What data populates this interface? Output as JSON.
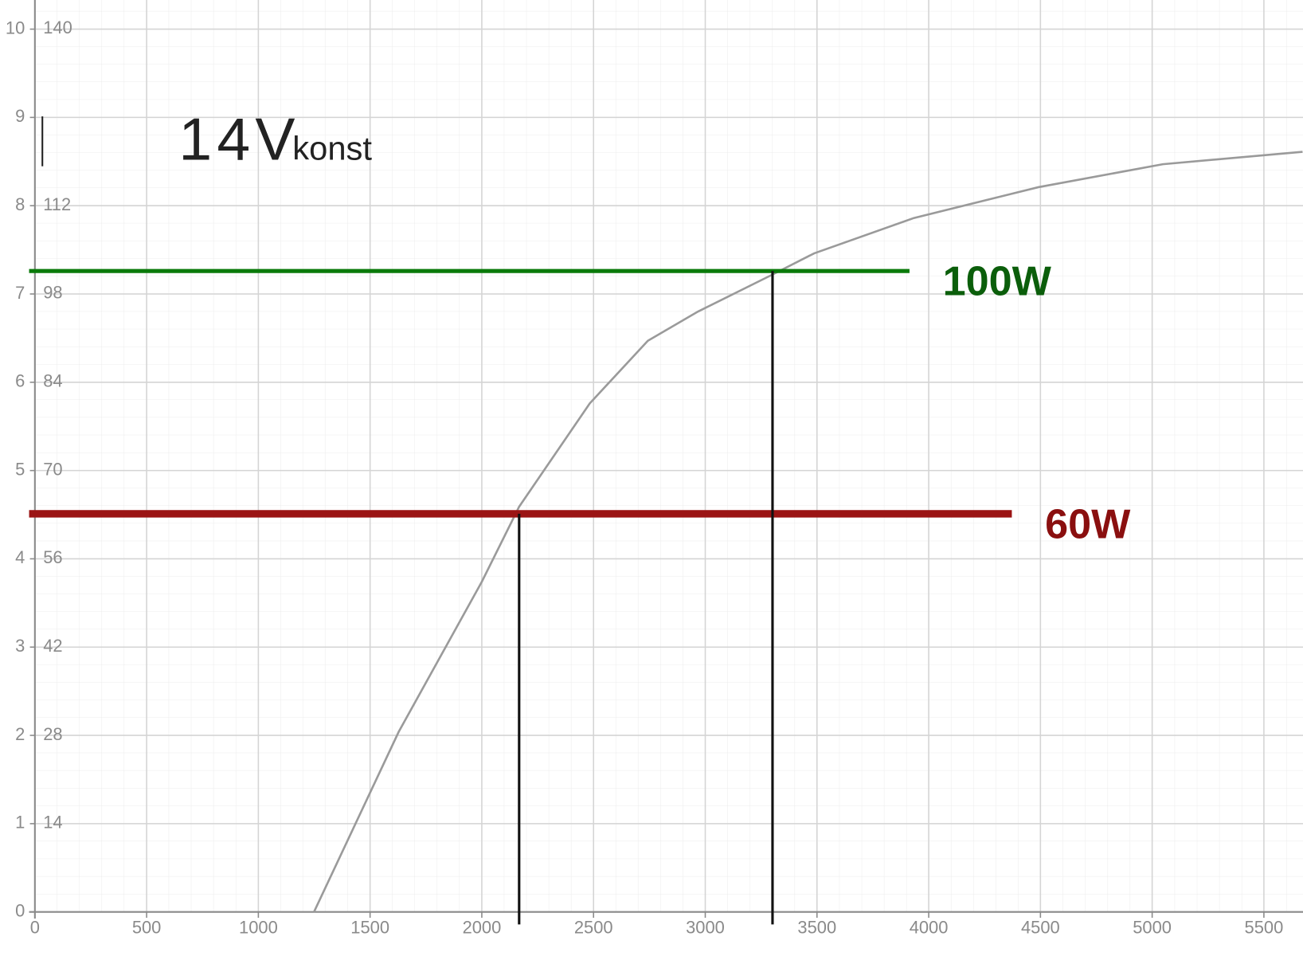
{
  "chart_data": {
    "type": "line",
    "title": "14V",
    "title_subscript": "konst",
    "x": [
      1249,
      1628,
      2000,
      2167,
      2483,
      2743,
      2967,
      3301,
      3487,
      3933,
      4491,
      5048,
      5673
    ],
    "series": [
      {
        "color": "#9a9a9a",
        "values": [
          0,
          2.04,
          3.74,
          4.59,
          5.76,
          6.47,
          6.8,
          7.22,
          7.46,
          7.86,
          8.21,
          8.47,
          8.61
        ]
      }
    ],
    "xlim": [
      0,
      5675
    ],
    "ylim": [
      0,
      10.33
    ],
    "xticks": [
      0,
      500,
      1000,
      1500,
      2000,
      2500,
      3000,
      3500,
      4000,
      4500,
      5000,
      5500
    ],
    "yticks": [
      0,
      1,
      2,
      3,
      4,
      5,
      6,
      7,
      8,
      9,
      10
    ],
    "y2lim": [
      0,
      144.6
    ],
    "y2ticks": [
      14,
      28,
      42,
      56,
      70,
      84,
      98,
      112,
      140
    ],
    "grid": true,
    "reference_lines": [
      {
        "label": "100W",
        "y": 7.26,
        "x_end": 3914,
        "color": "#0a7a0a",
        "label_color": "#0b5e0b"
      },
      {
        "label": "60W",
        "y": 4.51,
        "x_end": 4372,
        "color": "#9b1414",
        "label_color": "#8a0f0f"
      }
    ],
    "drop_lines": [
      {
        "x": 2167,
        "y": 4.51,
        "color": "#111111"
      },
      {
        "x": 3301,
        "y": 7.26,
        "color": "#111111"
      }
    ]
  }
}
